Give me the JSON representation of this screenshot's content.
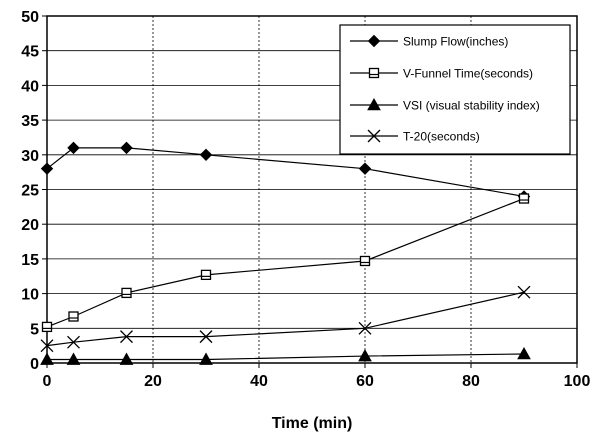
{
  "chart_data": {
    "type": "line",
    "title": "",
    "xlabel": "Time (min)",
    "ylabel": "",
    "xlim": [
      0,
      100
    ],
    "ylim": [
      0,
      50
    ],
    "xticks": [
      0,
      20,
      40,
      60,
      80,
      100
    ],
    "yticks": [
      0,
      5,
      10,
      15,
      20,
      25,
      30,
      35,
      40,
      45,
      50
    ],
    "grid": true,
    "legend_position": "top-right",
    "series": [
      {
        "name": "Slump Flow(inches)",
        "marker": "diamond",
        "x": [
          0,
          5,
          15,
          30,
          60,
          90
        ],
        "y": [
          28,
          31,
          31,
          30,
          28,
          24
        ]
      },
      {
        "name": "V-Funnel Time(seconds)",
        "marker": "square-open",
        "x": [
          0,
          5,
          15,
          30,
          60,
          90
        ],
        "y": [
          5.2,
          6.7,
          10.1,
          12.7,
          14.7,
          23.7
        ]
      },
      {
        "name": "VSI (visual stability index)",
        "marker": "triangle",
        "x": [
          0,
          5,
          15,
          30,
          60,
          90
        ],
        "y": [
          0.5,
          0.5,
          0.5,
          0.5,
          1,
          1.3
        ]
      },
      {
        "name": "T-20(seconds)",
        "marker": "x",
        "x": [
          0,
          5,
          15,
          30,
          60,
          90
        ],
        "y": [
          2.5,
          3,
          3.8,
          3.8,
          5,
          10.2
        ]
      }
    ]
  }
}
